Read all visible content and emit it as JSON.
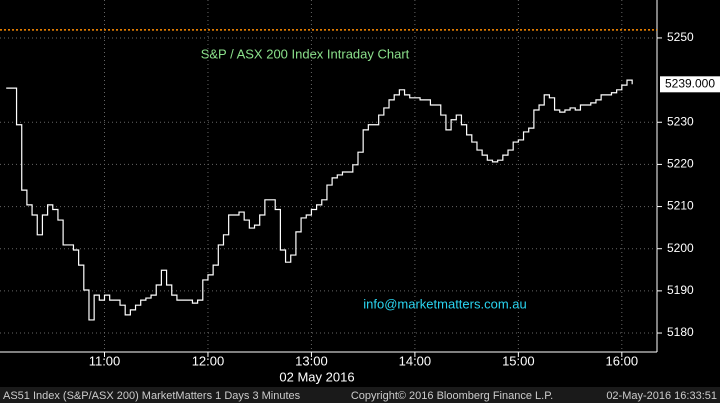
{
  "chart_data": {
    "type": "line",
    "title": "S&P / ASX 200 Index Intraday Chart",
    "annotation": "info@marketmatters.com.au",
    "x_label": "02 May 2016",
    "footer": [
      "AS51 Index (S&P/ASX 200) MarketMatters 1 Days 3 Minutes",
      "Copyright© 2016 Bloomberg Finance L.P.",
      "02-May-2016 16:33:51"
    ],
    "color": "#ffffff",
    "x": [
      10.05,
      10.1,
      10.15,
      10.2,
      10.25,
      10.3,
      10.35,
      10.4,
      10.45,
      10.5,
      10.55,
      10.6,
      10.65,
      10.7,
      10.75,
      10.8,
      10.85,
      10.9,
      10.95,
      11.0,
      11.05,
      11.1,
      11.15,
      11.2,
      11.25,
      11.3,
      11.35,
      11.4,
      11.45,
      11.5,
      11.55,
      11.6,
      11.65,
      11.7,
      11.75,
      11.8,
      11.85,
      11.9,
      11.95,
      12.0,
      12.05,
      12.1,
      12.15,
      12.2,
      12.25,
      12.3,
      12.35,
      12.4,
      12.45,
      12.5,
      12.55,
      12.6,
      12.65,
      12.7,
      12.75,
      12.8,
      12.85,
      12.9,
      12.95,
      13.0,
      13.05,
      13.1,
      13.15,
      13.2,
      13.25,
      13.3,
      13.35,
      13.4,
      13.45,
      13.5,
      13.55,
      13.6,
      13.65,
      13.7,
      13.75,
      13.8,
      13.85,
      13.9,
      13.95,
      14.0,
      14.05,
      14.1,
      14.15,
      14.2,
      14.25,
      14.3,
      14.35,
      14.4,
      14.45,
      14.5,
      14.55,
      14.6,
      14.65,
      14.7,
      14.75,
      14.8,
      14.85,
      14.9,
      14.95,
      15.0,
      15.05,
      15.1,
      15.15,
      15.2,
      15.25,
      15.3,
      15.35,
      15.4,
      15.45,
      15.5,
      15.55,
      15.6,
      15.65,
      15.7,
      15.75,
      15.8,
      15.85,
      15.9,
      15.95,
      16.0,
      16.05,
      16.1
    ],
    "values": [
      5238.1,
      5238.1,
      5229.4,
      5213.9,
      5210.4,
      5208,
      5203.3,
      5208,
      5210.4,
      5209.3,
      5206.8,
      5200.9,
      5200.9,
      5199.7,
      5196.1,
      5190.2,
      5183.1,
      5189,
      5187.8,
      5189,
      5187.8,
      5187.8,
      5186.6,
      5184.3,
      5185.5,
      5186.6,
      5187.8,
      5188.3,
      5189,
      5191.4,
      5194.9,
      5191.4,
      5189,
      5187.8,
      5187.8,
      5187.8,
      5187.1,
      5187.8,
      5192.6,
      5193.8,
      5196.1,
      5200.9,
      5203.3,
      5208,
      5208,
      5208.7,
      5206.8,
      5204.9,
      5205.6,
      5208,
      5211.6,
      5211.6,
      5209.3,
      5199.7,
      5196.8,
      5198.5,
      5204,
      5207.3,
      5208,
      5209.3,
      5210.4,
      5211.6,
      5215.1,
      5216.8,
      5217.5,
      5218.2,
      5218.2,
      5219.9,
      5222.9,
      5228.2,
      5229.4,
      5229.4,
      5231.7,
      5233.4,
      5235.3,
      5236.5,
      5237.7,
      5236.5,
      5235.8,
      5235.8,
      5235.3,
      5235.3,
      5234.1,
      5234.1,
      5231.7,
      5228.2,
      5230.6,
      5231.7,
      5229.4,
      5227,
      5225.3,
      5223.4,
      5222.2,
      5221,
      5220.6,
      5221,
      5222.2,
      5223.4,
      5225.3,
      5225.8,
      5227.7,
      5228.6,
      5232.9,
      5234.1,
      5236.5,
      5235.8,
      5232.9,
      5232.4,
      5232.9,
      5233.4,
      5232.9,
      5234.1,
      5234.1,
      5234.6,
      5235.3,
      5236.5,
      5236.5,
      5237,
      5237.7,
      5238.8,
      5240,
      5239
    ],
    "last_value": 5239,
    "last_value_label": "5239.000",
    "hline": {
      "value": 5251.9,
      "color": "#ff8c00"
    },
    "xlim": [
      9.99,
      16.34
    ],
    "ylim": [
      5175.5,
      5259
    ],
    "xticks": [
      {
        "value": 11,
        "label": "11:00"
      },
      {
        "value": 12,
        "label": "12:00"
      },
      {
        "value": 13,
        "label": "13:00"
      },
      {
        "value": 14,
        "label": "14:00"
      },
      {
        "value": 15,
        "label": "15:00"
      },
      {
        "value": 16,
        "label": "16:00"
      }
    ],
    "yticks": [
      5180,
      5190,
      5200,
      5210,
      5220,
      5230,
      5250
    ],
    "grid": true
  }
}
